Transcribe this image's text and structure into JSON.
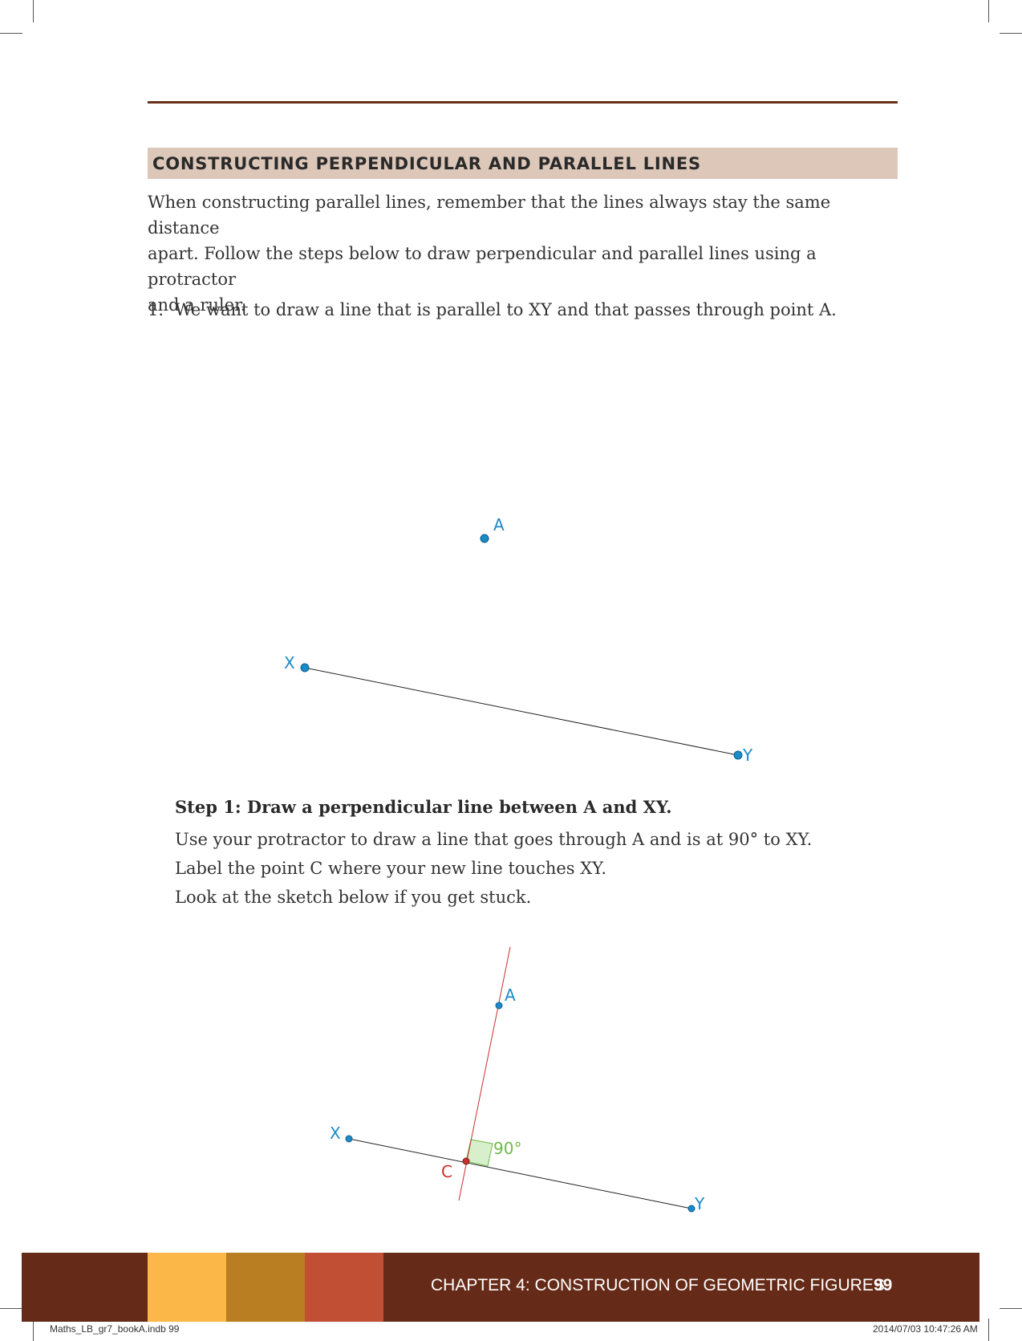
{
  "section": {
    "title": "CONSTRUCTING PERPENDICULAR AND PARALLEL LINES",
    "intro_lines": [
      "When constructing parallel lines, remember that the lines always stay the same distance",
      "apart. Follow the steps below to draw perpendicular and parallel lines using a protractor",
      "and a ruler."
    ]
  },
  "question": {
    "number": "1.",
    "text": "We want to draw a line that is parallel to XY and that passes through point A."
  },
  "figure1": {
    "label_a": "A",
    "label_x": "X",
    "label_y": "Y"
  },
  "step1": {
    "title": "Step 1: Draw a perpendicular line between A and XY.",
    "lines": [
      "Use your protractor to draw a line that goes through A and is at 90° to XY.",
      "Label the point C where your new line touches XY.",
      "Look at the sketch below if you get stuck."
    ]
  },
  "figure2": {
    "label_a": "A",
    "label_x": "X",
    "label_y": "Y",
    "label_c": "C",
    "angle_label": "90°"
  },
  "colors": {
    "point_blue": "#1a8bc9",
    "perpendicular_red": "#c8302e",
    "angle_green": "#6dbb44",
    "footer_brown": "#662b18",
    "swatch_1": "#fbb747",
    "swatch_2": "#b97e21",
    "swatch_3": "#c04f33",
    "section_bar": "#dcc7b8"
  },
  "footer": {
    "chapter": "CHAPTER 4: CONSTRUCTION OF GEOMETRIC FIGURES",
    "page": "99"
  },
  "slug": {
    "file": "Maths_LB_gr7_bookA.indb   99",
    "timestamp": "2014/07/03   10:47:26 AM"
  }
}
